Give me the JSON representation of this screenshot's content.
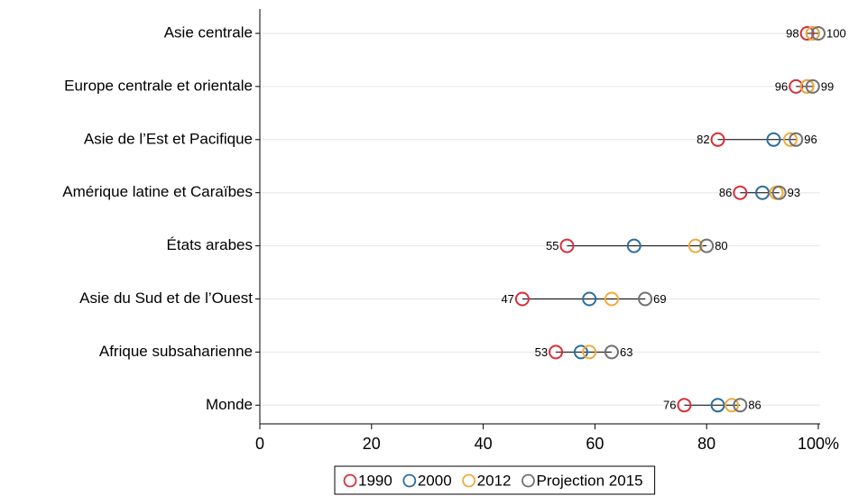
{
  "chart_data": {
    "type": "dot",
    "orientation": "horizontal",
    "categories": [
      "Asie centrale",
      "Europe centrale et orientale",
      "Asie de l’Est et Pacifique",
      "Amérique latine et Caraïbes",
      "États arabes",
      "Asie du Sud et de l’Ouest",
      "Afrique subsaharienne",
      "Monde"
    ],
    "series": [
      {
        "name": "1990",
        "color": "#d62f3a",
        "values": [
          98,
          96,
          82,
          86,
          55,
          47,
          53,
          76
        ],
        "labels": true
      },
      {
        "name": "2000",
        "color": "#2a6d9e",
        "values": [
          99,
          98,
          92,
          90,
          67,
          59,
          57.5,
          82
        ],
        "labels": false
      },
      {
        "name": "2012",
        "color": "#f2a93b",
        "values": [
          99,
          98,
          95,
          92.5,
          78,
          63,
          59,
          84.5
        ],
        "labels": false
      },
      {
        "name": "Projection 2015",
        "color": "#707070",
        "values": [
          100,
          99,
          96,
          93,
          80,
          69,
          63,
          86
        ],
        "labels": true
      }
    ],
    "xlim": [
      0,
      100
    ],
    "xticks": [
      0,
      20,
      40,
      60,
      80,
      {
        "value": 100,
        "label": "100%"
      }
    ],
    "grid": true,
    "legend": "bottom"
  }
}
